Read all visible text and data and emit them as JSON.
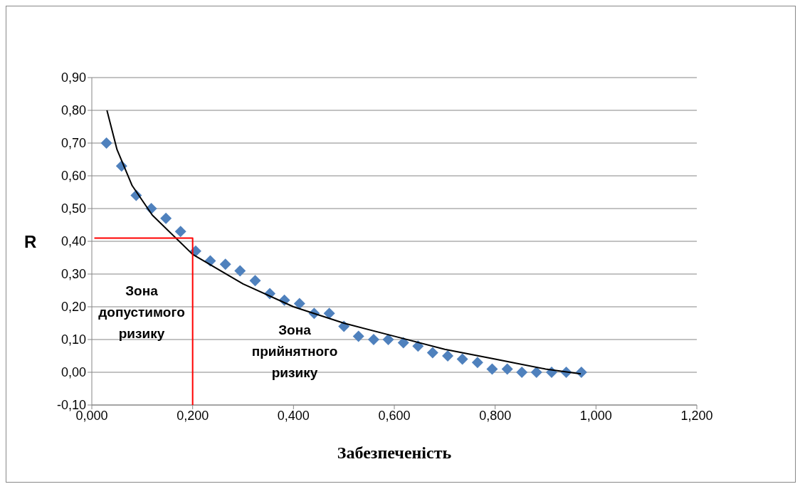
{
  "chart_data": {
    "type": "scatter",
    "xlabel": "Забезпеченість",
    "ylabel": "R",
    "xlim": [
      0,
      1.2
    ],
    "xticks": [
      {
        "value": 0,
        "label": "0,000"
      },
      {
        "value": 0.2,
        "label": "0,200"
      },
      {
        "value": 0.4,
        "label": "0,400"
      },
      {
        "value": 0.6,
        "label": "0,600"
      },
      {
        "value": 0.8,
        "label": "0,800"
      },
      {
        "value": 1,
        "label": "1,000"
      },
      {
        "value": 1.2,
        "label": "1,200"
      }
    ],
    "ylim": [
      -0.1,
      0.9
    ],
    "yticks": [
      {
        "value": -0.1,
        "label": "-0,10"
      },
      {
        "value": 0,
        "label": "0,00"
      },
      {
        "value": 0.1,
        "label": "0,10"
      },
      {
        "value": 0.2,
        "label": "0,20"
      },
      {
        "value": 0.3,
        "label": "0,30"
      },
      {
        "value": 0.4,
        "label": "0,40"
      },
      {
        "value": 0.5,
        "label": "0,50"
      },
      {
        "value": 0.6,
        "label": "0,60"
      },
      {
        "value": 0.7,
        "label": "0,70"
      },
      {
        "value": 0.8,
        "label": "0,80"
      },
      {
        "value": 0.9,
        "label": "0,90"
      }
    ],
    "grid": "y",
    "legend": false,
    "series": [
      {
        "color": "#4f81bd",
        "marker": "diamond",
        "x": [
          0.029,
          0.059,
          0.088,
          0.118,
          0.147,
          0.176,
          0.206,
          0.235,
          0.265,
          0.294,
          0.324,
          0.353,
          0.382,
          0.412,
          0.441,
          0.471,
          0.5,
          0.529,
          0.559,
          0.588,
          0.618,
          0.647,
          0.676,
          0.706,
          0.735,
          0.765,
          0.794,
          0.824,
          0.853,
          0.882,
          0.912,
          0.941,
          0.971
        ],
        "values": [
          0.7,
          0.63,
          0.54,
          0.5,
          0.47,
          0.43,
          0.37,
          0.34,
          0.33,
          0.31,
          0.28,
          0.24,
          0.22,
          0.21,
          0.18,
          0.18,
          0.14,
          0.11,
          0.1,
          0.1,
          0.09,
          0.08,
          0.06,
          0.05,
          0.04,
          0.03,
          0.01,
          0.01,
          0.0,
          0.0,
          0.0,
          0.0,
          0.0
        ]
      },
      {
        "type": "line",
        "color": "#000000",
        "marker": "none",
        "x": [
          0.03,
          0.05,
          0.08,
          0.12,
          0.2,
          0.3,
          0.4,
          0.5,
          0.6,
          0.7,
          0.8,
          0.9,
          0.97
        ],
        "values": [
          0.8,
          0.68,
          0.57,
          0.48,
          0.36,
          0.27,
          0.2,
          0.15,
          0.11,
          0.07,
          0.04,
          0.01,
          -0.005
        ]
      },
      {
        "type": "line",
        "color": "#ff0000",
        "marker": "none",
        "x": [
          0.005,
          0.2,
          0.2
        ],
        "values": [
          0.41,
          0.41,
          -0.1
        ]
      }
    ],
    "annotations": [
      "Зона допустимого ризику",
      "Зона прийнятного ризику"
    ]
  }
}
